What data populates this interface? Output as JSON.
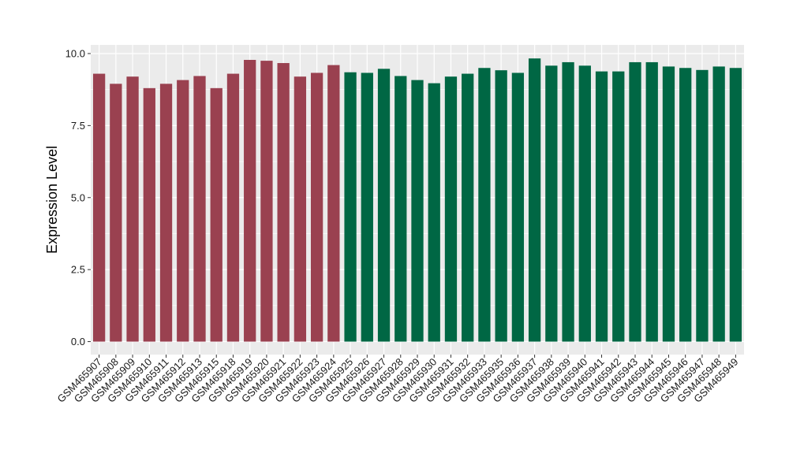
{
  "chart_data": {
    "type": "bar",
    "ylabel": "Expression Level",
    "xlabel": "",
    "ylim": [
      -0.45,
      10.3
    ],
    "yticks": [
      "0.0",
      "2.5",
      "5.0",
      "7.5",
      "10.0"
    ],
    "ytick_values": [
      0,
      2.5,
      5,
      7.5,
      10
    ],
    "grid": true,
    "panel_background": "#ebebeb",
    "gridline_color": "#ffffff",
    "categories": [
      "GSM465907",
      "GSM465908",
      "GSM465909",
      "GSM465910",
      "GSM465911",
      "GSM465912",
      "GSM465913",
      "GSM465915",
      "GSM465918",
      "GSM465919",
      "GSM465920",
      "GSM465921",
      "GSM465922",
      "GSM465923",
      "GSM465924",
      "GSM465925",
      "GSM465926",
      "GSM465927",
      "GSM465928",
      "GSM465929",
      "GSM465930",
      "GSM465931",
      "GSM465932",
      "GSM465933",
      "GSM465935",
      "GSM465936",
      "GSM465937",
      "GSM465938",
      "GSM465939",
      "GSM465940",
      "GSM465941",
      "GSM465942",
      "GSM465943",
      "GSM465944",
      "GSM465945",
      "GSM465946",
      "GSM465947",
      "GSM465948",
      "GSM465949"
    ],
    "values": [
      9.3,
      8.95,
      9.2,
      8.8,
      8.95,
      9.08,
      9.22,
      8.8,
      9.3,
      9.78,
      9.75,
      9.67,
      9.2,
      9.33,
      9.6,
      9.35,
      9.33,
      9.47,
      9.22,
      9.08,
      8.97,
      9.2,
      9.3,
      9.5,
      9.42,
      9.33,
      9.83,
      9.58,
      9.7,
      9.58,
      9.38,
      9.38,
      9.7,
      9.7,
      9.55,
      9.5,
      9.43,
      9.55,
      9.5
    ],
    "bar_colors": [
      "#9a4150",
      "#9a4150",
      "#9a4150",
      "#9a4150",
      "#9a4150",
      "#9a4150",
      "#9a4150",
      "#9a4150",
      "#9a4150",
      "#9a4150",
      "#9a4150",
      "#9a4150",
      "#9a4150",
      "#9a4150",
      "#9a4150",
      "#006744",
      "#006744",
      "#006744",
      "#006744",
      "#006744",
      "#006744",
      "#006744",
      "#006744",
      "#006744",
      "#006744",
      "#006744",
      "#006744",
      "#006744",
      "#006744",
      "#006744",
      "#006744",
      "#006744",
      "#006744",
      "#006744",
      "#006744",
      "#006744",
      "#006744",
      "#006744",
      "#006744"
    ]
  }
}
